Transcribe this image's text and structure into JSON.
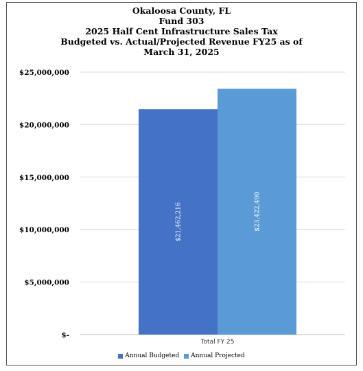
{
  "chart_data": {
    "type": "bar",
    "title_lines": [
      "Okaloosa County, FL",
      "Fund 303",
      "2025 Half Cent Infrastructure Sales Tax",
      "Budgeted vs. Actual/Projected Revenue FY25 as of",
      "March 31, 2025"
    ],
    "categories": [
      "Total FY 25"
    ],
    "series": [
      {
        "name": "Annual Budgeted",
        "values": [
          21462216
        ],
        "label": "$21,462,216",
        "color": "#4472C4"
      },
      {
        "name": "Annual Projected",
        "values": [
          23422490
        ],
        "label": "$23,422,490",
        "color": "#5B9BD5"
      }
    ],
    "ylim": [
      0,
      25000000
    ],
    "y_ticks": [
      {
        "value": 25000000,
        "label": "$25,000,000"
      },
      {
        "value": 20000000,
        "label": "$20,000,000"
      },
      {
        "value": 15000000,
        "label": "$15,000,000"
      },
      {
        "value": 10000000,
        "label": "$10,000,000"
      },
      {
        "value": 5000000,
        "label": "$5,000,000"
      },
      {
        "value": 0,
        "label": "$-"
      }
    ],
    "grid": true,
    "legend": "bottom"
  }
}
